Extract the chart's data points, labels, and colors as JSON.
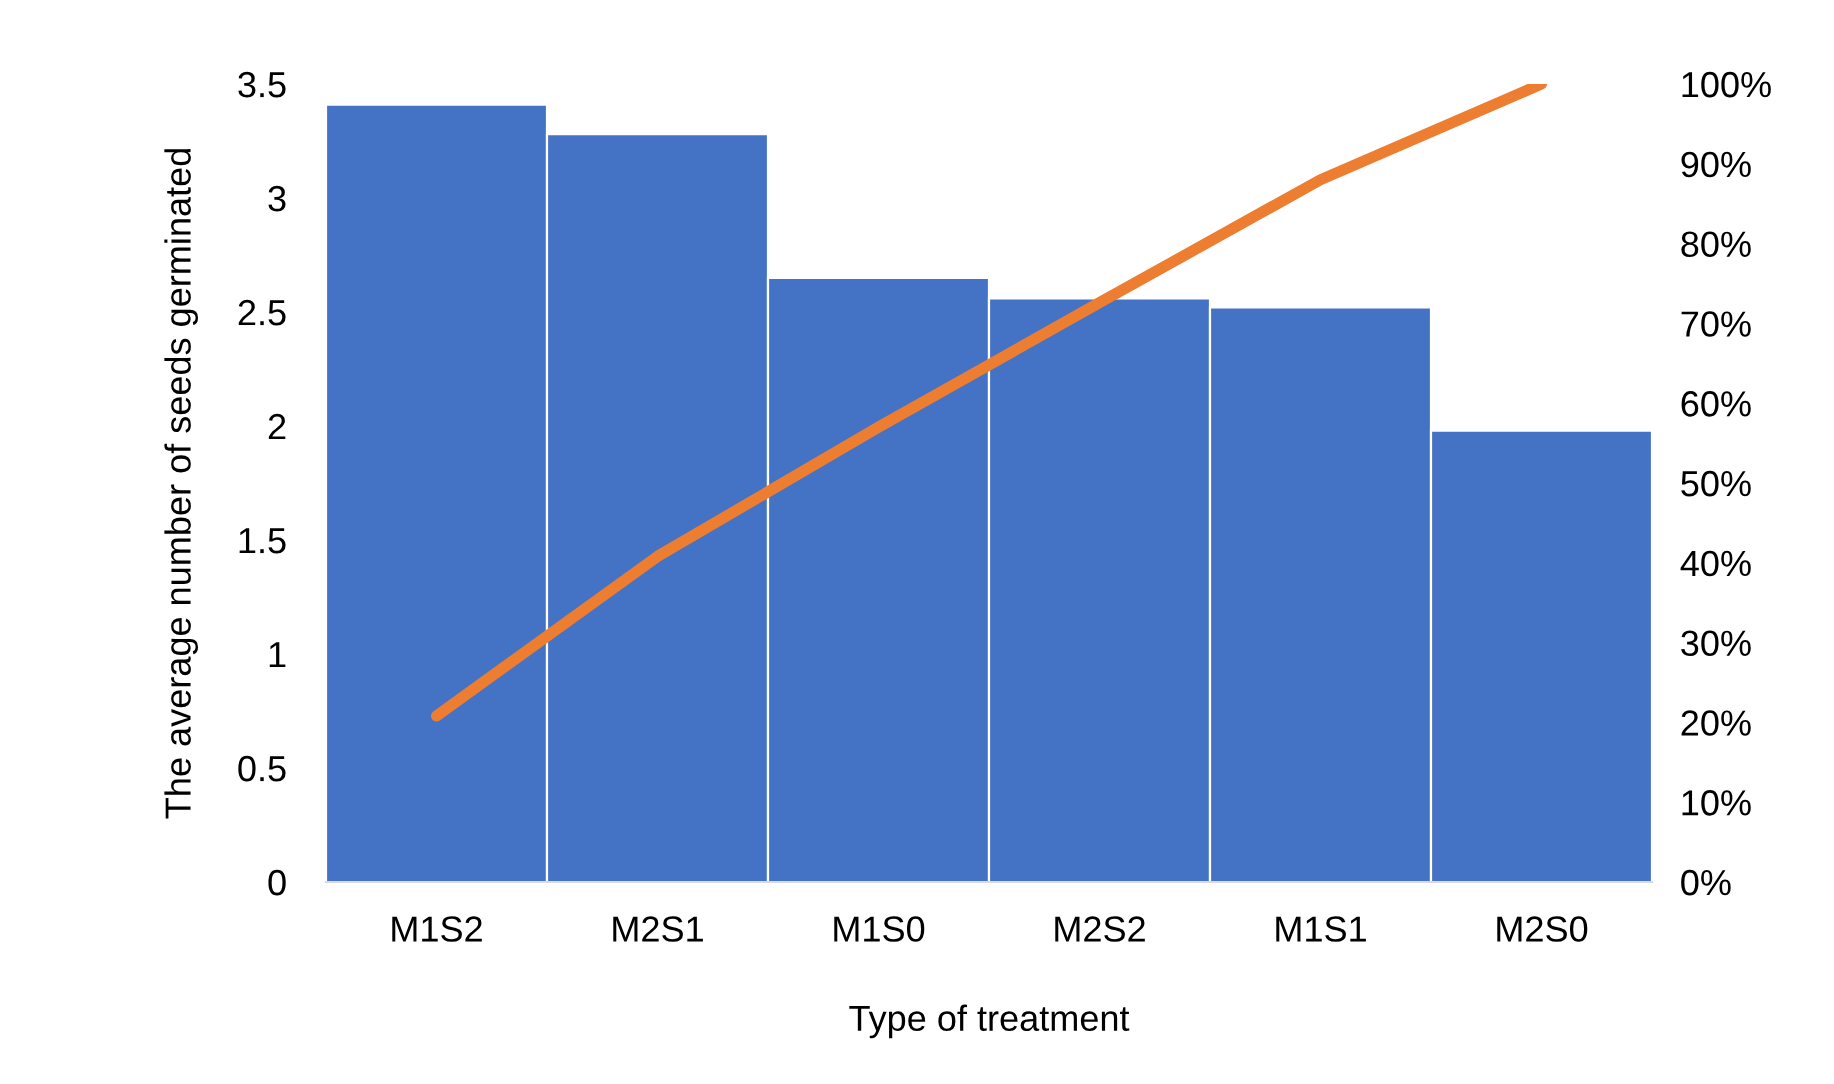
{
  "chart_data": {
    "type": "bar",
    "xlabel": "Type of treatment",
    "ylabel": "The average number of seeds germinated",
    "categories": [
      "M1S2",
      "M2S1",
      "M1S0",
      "M2S2",
      "M1S1",
      "M2S0"
    ],
    "series": [
      {
        "color": "#4472c4",
        "values": [
          3.41,
          3.28,
          2.65,
          2.56,
          2.52,
          1.98
        ]
      },
      {
        "type": "line",
        "axis": "y2",
        "color": "#ed7d31",
        "values": [
          20.8,
          40.8,
          57.0,
          72.6,
          88.0,
          100
        ]
      }
    ],
    "ylim": [
      0,
      3.5
    ],
    "yticks": [
      0,
      0.5,
      1,
      1.5,
      2,
      2.5,
      3,
      3.5
    ],
    "y2lim": [
      0,
      100
    ],
    "y2ticks": [
      {
        "value": 0,
        "label": "0%"
      },
      {
        "value": 10,
        "label": "10%"
      },
      {
        "value": 20,
        "label": "20%"
      },
      {
        "value": 30,
        "label": "30%"
      },
      {
        "value": 40,
        "label": "40%"
      },
      {
        "value": 50,
        "label": "50%"
      },
      {
        "value": 60,
        "label": "60%"
      },
      {
        "value": 70,
        "label": "70%"
      },
      {
        "value": 80,
        "label": "80%"
      },
      {
        "value": 90,
        "label": "90%"
      },
      {
        "value": 100,
        "label": "100%"
      }
    ],
    "grid": false,
    "legend": false
  }
}
